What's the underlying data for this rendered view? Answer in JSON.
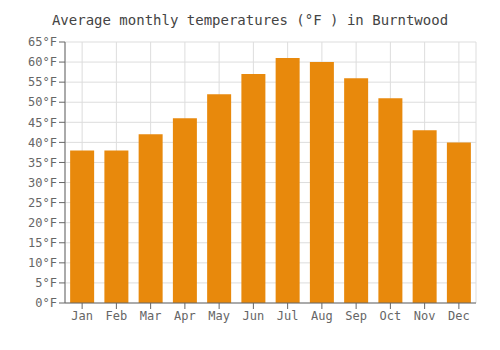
{
  "chart_data": {
    "type": "bar",
    "title": "Average monthly temperatures (°F ) in Burntwood",
    "categories": [
      "Jan",
      "Feb",
      "Mar",
      "Apr",
      "May",
      "Jun",
      "Jul",
      "Aug",
      "Sep",
      "Oct",
      "Nov",
      "Dec"
    ],
    "values": [
      38,
      38,
      42,
      46,
      52,
      57,
      61,
      60,
      56,
      51,
      43,
      40
    ],
    "color": "#E8890C",
    "ylim": [
      0,
      65
    ],
    "yticks": [
      {
        "value": 0,
        "label": "0°F"
      },
      {
        "value": 5,
        "label": "5°F"
      },
      {
        "value": 10,
        "label": "10°F"
      },
      {
        "value": 15,
        "label": "15°F"
      },
      {
        "value": 20,
        "label": "20°F"
      },
      {
        "value": 25,
        "label": "25°F"
      },
      {
        "value": 30,
        "label": "30°F"
      },
      {
        "value": 35,
        "label": "35°F"
      },
      {
        "value": 40,
        "label": "40°F"
      },
      {
        "value": 45,
        "label": "45°F"
      },
      {
        "value": 50,
        "label": "50°F"
      },
      {
        "value": 55,
        "label": "55°F"
      },
      {
        "value": 60,
        "label": "60°F"
      },
      {
        "value": 65,
        "label": "65°F"
      }
    ],
    "grid": true
  }
}
